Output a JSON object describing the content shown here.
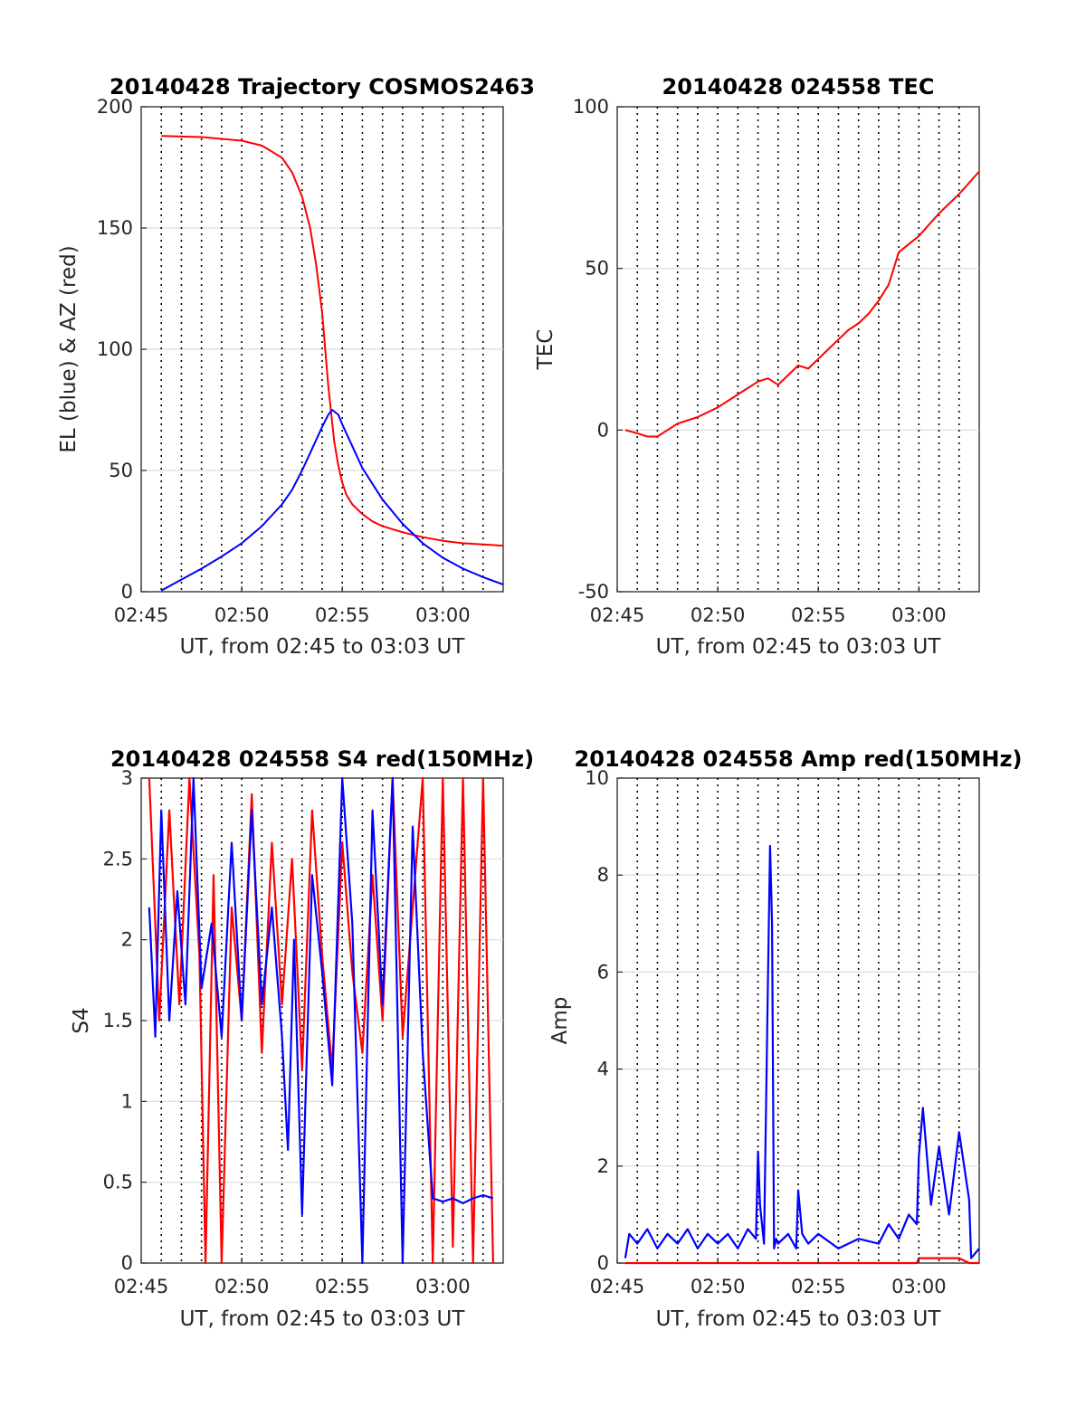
{
  "figure": {
    "colors": {
      "red": "#ff0000",
      "blue": "#0000ff",
      "axis": "#262626"
    }
  },
  "chart_data": [
    {
      "id": "trajectory",
      "type": "line",
      "title": "20140428 Trajectory COSMOS2463",
      "xlabel": "UT, from 02:45 to 03:03 UT",
      "ylabel": "EL (blue) & AZ (red)",
      "xlim_minutes_after_0245": [
        0,
        18
      ],
      "xticks": [
        "02:45",
        "02:50",
        "02:55",
        "03:00"
      ],
      "ylim": [
        0,
        200
      ],
      "yticks": [
        0,
        50,
        100,
        150,
        200
      ],
      "x_unit": "minutes after 02:45 UT",
      "series": [
        {
          "name": "AZ",
          "color": "#ff0000",
          "x": [
            1,
            3,
            5,
            6,
            7,
            7.5,
            8,
            8.4,
            8.7,
            9,
            9.3,
            9.6,
            9.8,
            10,
            10.2,
            10.5,
            11,
            11.5,
            12,
            13,
            14,
            15,
            16,
            17,
            18
          ],
          "y": [
            188,
            187.5,
            186,
            184,
            179,
            173,
            163,
            150,
            135,
            115,
            85,
            62,
            52,
            45,
            40,
            36,
            32,
            29,
            27,
            24.5,
            22.5,
            21,
            20,
            19.5,
            19
          ]
        },
        {
          "name": "EL",
          "color": "#0000ff",
          "x": [
            1,
            2,
            3,
            4,
            5,
            6,
            7,
            7.5,
            8,
            8.5,
            9,
            9.3,
            9.5,
            9.8,
            10,
            10.5,
            11,
            12,
            13,
            14,
            15,
            16,
            17,
            18
          ],
          "y": [
            0.5,
            5,
            9.5,
            14.5,
            20,
            27,
            36,
            42,
            50,
            59,
            68,
            73,
            75,
            73,
            69,
            60,
            51,
            38,
            28,
            20,
            14,
            9.5,
            6,
            3
          ]
        }
      ],
      "vgrid": "dotted, every minute",
      "hgrid": "on"
    },
    {
      "id": "tec",
      "type": "line",
      "title": "20140428 024558 TEC",
      "xlabel": "UT, from 02:45 to 03:03 UT",
      "ylabel": "TEC",
      "xlim_minutes_after_0245": [
        0,
        18
      ],
      "xticks": [
        "02:45",
        "02:50",
        "02:55",
        "03:00"
      ],
      "ylim": [
        -50,
        100
      ],
      "yticks": [
        -50,
        0,
        50,
        100
      ],
      "x_unit": "minutes after 02:45 UT",
      "series": [
        {
          "color": "#ff0000",
          "x": [
            0.4,
            1,
            1.5,
            2,
            2.5,
            3,
            4,
            5,
            6,
            7,
            7.5,
            8,
            8.5,
            9,
            9.5,
            10,
            10.5,
            11,
            11.5,
            12,
            12.5,
            13,
            13.5,
            14,
            15,
            16,
            17,
            18
          ],
          "y": [
            0,
            -1,
            -2,
            -2,
            0,
            2,
            4,
            7,
            11,
            15,
            16,
            14,
            17,
            20,
            19,
            22,
            25,
            28,
            31,
            33,
            36,
            40,
            45,
            55,
            60,
            67,
            73,
            80
          ]
        }
      ],
      "vgrid": "dotted, every minute",
      "hgrid": "on"
    },
    {
      "id": "s4",
      "type": "line",
      "title": "20140428 024558 S4 red(150MHz)",
      "xlabel": "UT, from 02:45 to 03:03 UT",
      "ylabel": "S4",
      "xlim_minutes_after_0245": [
        0,
        18
      ],
      "xticks": [
        "02:45",
        "02:50",
        "02:55",
        "03:00"
      ],
      "ylim": [
        0,
        3
      ],
      "yticks": [
        0,
        0.5,
        1,
        1.5,
        2,
        2.5,
        3
      ],
      "x_unit": "minutes after 02:45 UT",
      "series": [
        {
          "color": "#ff0000",
          "x": [
            0.4,
            0.9,
            1.4,
            1.9,
            2.4,
            2.9,
            3.2,
            3.6,
            4,
            4.5,
            5.0,
            5.5,
            6.0,
            6.5,
            7.0,
            7.5,
            8.0,
            8.5,
            9.0,
            9.5,
            10.0,
            10.5,
            11.0,
            11.5,
            12.0,
            12.5,
            13.0,
            14.0,
            14.5,
            15.0,
            15.5,
            16.0,
            16.5,
            17.0,
            17.5
          ],
          "y": [
            3,
            1.5,
            2.8,
            1.6,
            3,
            1.9,
            0,
            2.4,
            0,
            2.2,
            1.5,
            2.9,
            1.3,
            2.6,
            1.6,
            2.5,
            1.2,
            2.8,
            1.9,
            1.2,
            2.6,
            1.8,
            1.3,
            2.4,
            1.5,
            3,
            1.4,
            3,
            0,
            3,
            0.1,
            3,
            0,
            3,
            0
          ]
        },
        {
          "color": "#0000ff",
          "x": [
            0.4,
            0.7,
            1.0,
            1.4,
            1.8,
            2.2,
            2.6,
            3.0,
            3.5,
            4.0,
            4.5,
            5.0,
            5.5,
            6.0,
            6.5,
            7.0,
            7.3,
            7.6,
            8.0,
            8.5,
            9.0,
            9.5,
            10.0,
            10.5,
            11.0,
            11.5,
            12.0,
            12.5,
            13.0,
            13.5,
            14.0,
            14.5,
            15.0,
            15.5,
            16.0,
            16.5,
            17.0,
            17.5
          ],
          "y": [
            2.2,
            1.4,
            2.8,
            1.5,
            2.3,
            1.6,
            3,
            1.7,
            2.1,
            1.4,
            2.6,
            1.5,
            2.8,
            1.6,
            2.2,
            1.4,
            0.7,
            2.0,
            0.3,
            2.4,
            1.8,
            1.1,
            3,
            2.1,
            0,
            2.8,
            1.6,
            3,
            0,
            2.7,
            1.3,
            0.4,
            0.38,
            0.4,
            0.37,
            0.4,
            0.42,
            0.4
          ]
        }
      ],
      "vgrid": "dotted, every minute",
      "hgrid": "on"
    },
    {
      "id": "amp",
      "type": "line",
      "title": "20140428 024558 Amp red(150MHz)",
      "xlabel": "UT, from 02:45 to 03:03 UT",
      "ylabel": "Amp",
      "xlim_minutes_after_0245": [
        0,
        18
      ],
      "xticks": [
        "02:45",
        "02:50",
        "02:55",
        "03:00"
      ],
      "ylim": [
        0,
        10
      ],
      "yticks": [
        0,
        2,
        4,
        6,
        8,
        10
      ],
      "x_unit": "minutes after 02:45 UT",
      "series": [
        {
          "color": "#ff0000",
          "x": [
            0.4,
            14.9,
            15.0,
            17.0,
            17.5,
            18
          ],
          "y": [
            0,
            0,
            0.1,
            0.1,
            0,
            0
          ]
        },
        {
          "color": "#0000ff",
          "x": [
            0.4,
            0.6,
            1.0,
            1.5,
            2.0,
            2.5,
            3.0,
            3.5,
            4.0,
            4.5,
            5.0,
            5.5,
            6.0,
            6.5,
            6.9,
            7.0,
            7.1,
            7.3,
            7.5,
            7.6,
            7.7,
            7.8,
            7.9,
            8.0,
            8.5,
            8.9,
            9.0,
            9.2,
            9.5,
            10,
            11,
            12,
            13,
            13.5,
            14,
            14.5,
            14.9,
            15.0,
            15.2,
            15.6,
            16,
            16.5,
            17,
            17.5,
            17.6,
            18
          ],
          "y": [
            0.1,
            0.6,
            0.4,
            0.7,
            0.3,
            0.6,
            0.4,
            0.7,
            0.3,
            0.6,
            0.4,
            0.6,
            0.3,
            0.7,
            0.5,
            2.3,
            1.2,
            0.4,
            6.0,
            8.6,
            7.0,
            0.3,
            0.5,
            0.4,
            0.6,
            0.3,
            1.5,
            0.6,
            0.4,
            0.6,
            0.3,
            0.5,
            0.4,
            0.8,
            0.5,
            1.0,
            0.8,
            2.2,
            3.2,
            1.2,
            2.4,
            1.0,
            2.7,
            1.3,
            0.1,
            0.3
          ]
        }
      ],
      "vgrid": "dotted, every minute",
      "hgrid": "on"
    }
  ]
}
